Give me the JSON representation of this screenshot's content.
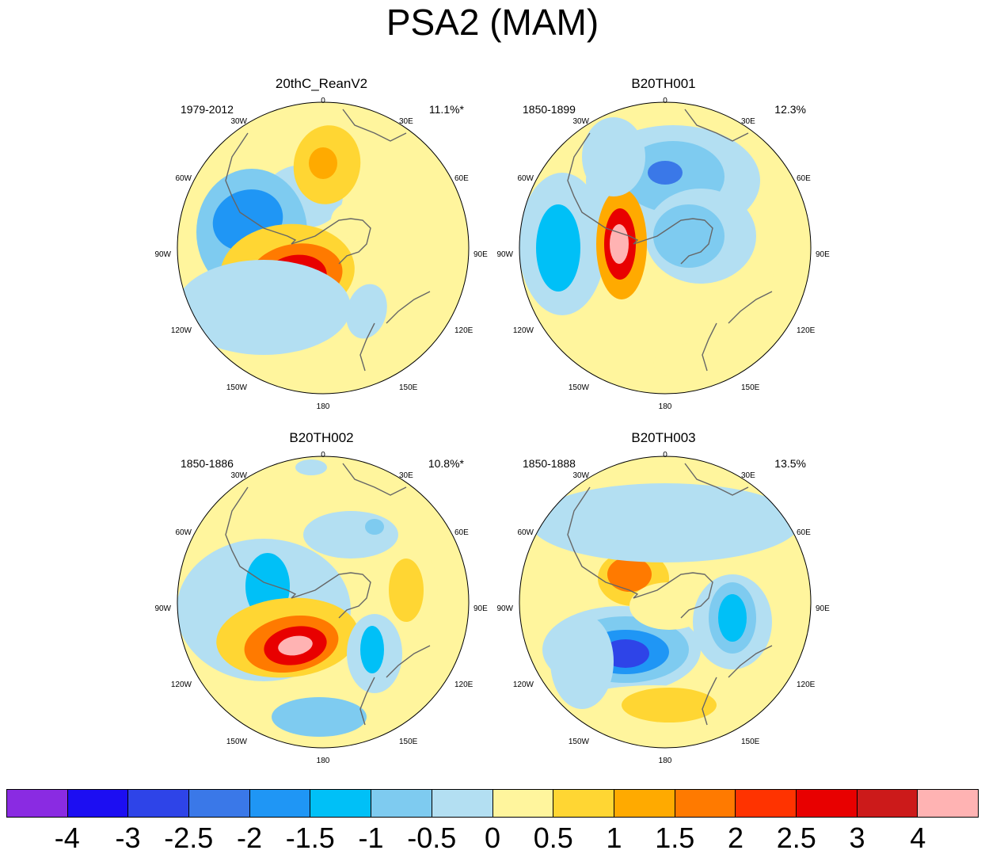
{
  "title": "PSA2 (MAM)",
  "longitude_labels": {
    "top": "0",
    "tr30": "30E",
    "tr60": "60E",
    "right": "90E",
    "br120": "120E",
    "br150": "150E",
    "bottom": "180",
    "bl150": "150W",
    "bl120": "120W",
    "left": "90W",
    "tl60": "60W",
    "tl30": "30W"
  },
  "panels": [
    {
      "title": "20thC_ReanV2",
      "period": "1979-2012",
      "pct": "11.1%*"
    },
    {
      "title": "B20TH001",
      "period": "1850-1899",
      "pct": "12.3%"
    },
    {
      "title": "B20TH002",
      "period": "1850-1886",
      "pct": "10.8%*"
    },
    {
      "title": "B20TH003",
      "period": "1850-1888",
      "pct": "13.5%"
    }
  ],
  "colorbar": {
    "labels": [
      "-4",
      "-3",
      "-2.5",
      "-2",
      "-1.5",
      "-1",
      "-0.5",
      "0",
      "0.5",
      "1",
      "1.5",
      "2",
      "2.5",
      "3",
      "4"
    ],
    "colors": [
      "#8a2be2",
      "#1c0ef2",
      "#2e44e8",
      "#3a78e8",
      "#1f96f5",
      "#00c0f7",
      "#7ecbf0",
      "#b3dff2",
      "#fff59d",
      "#ffd633",
      "#ffaa00",
      "#ff7a00",
      "#ff3300",
      "#e80000",
      "#cc1a1a",
      "#ffb3b3"
    ]
  },
  "colors": {
    "zero_neg": "#b3dff2",
    "zero_pos": "#fff59d",
    "coast": "#666666"
  }
}
